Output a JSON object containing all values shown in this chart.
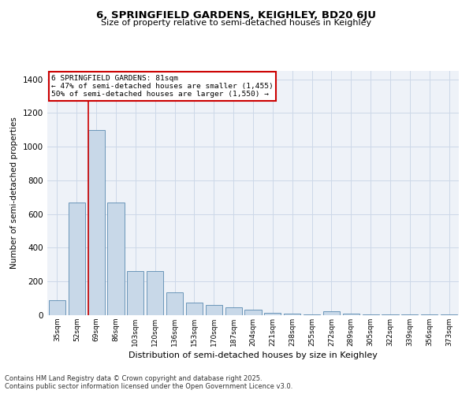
{
  "title_line1": "6, SPRINGFIELD GARDENS, KEIGHLEY, BD20 6JU",
  "title_line2": "Size of property relative to semi-detached houses in Keighley",
  "xlabel": "Distribution of semi-detached houses by size in Keighley",
  "ylabel": "Number of semi-detached properties",
  "categories": [
    "35sqm",
    "52sqm",
    "69sqm",
    "86sqm",
    "103sqm",
    "120sqm",
    "136sqm",
    "153sqm",
    "170sqm",
    "187sqm",
    "204sqm",
    "221sqm",
    "238sqm",
    "255sqm",
    "272sqm",
    "289sqm",
    "305sqm",
    "322sqm",
    "339sqm",
    "356sqm",
    "373sqm"
  ],
  "values": [
    90,
    670,
    1100,
    670,
    260,
    260,
    135,
    75,
    60,
    45,
    35,
    15,
    10,
    5,
    25,
    10,
    5,
    5,
    5,
    5,
    5
  ],
  "bar_color": "#c8d8e8",
  "bar_edge_color": "#5a8ab0",
  "annotation_title": "6 SPRINGFIELD GARDENS: 81sqm",
  "annotation_line2": "← 47% of semi-detached houses are smaller (1,455)",
  "annotation_line3": "50% of semi-detached houses are larger (1,550) →",
  "property_line_color": "#cc0000",
  "annotation_box_color": "#cc0000",
  "ylim": [
    0,
    1450
  ],
  "yticks": [
    0,
    200,
    400,
    600,
    800,
    1000,
    1200,
    1400
  ],
  "grid_color": "#ccd8e8",
  "background_color": "#eef2f8",
  "footer_line1": "Contains HM Land Registry data © Crown copyright and database right 2025.",
  "footer_line2": "Contains public sector information licensed under the Open Government Licence v3.0."
}
